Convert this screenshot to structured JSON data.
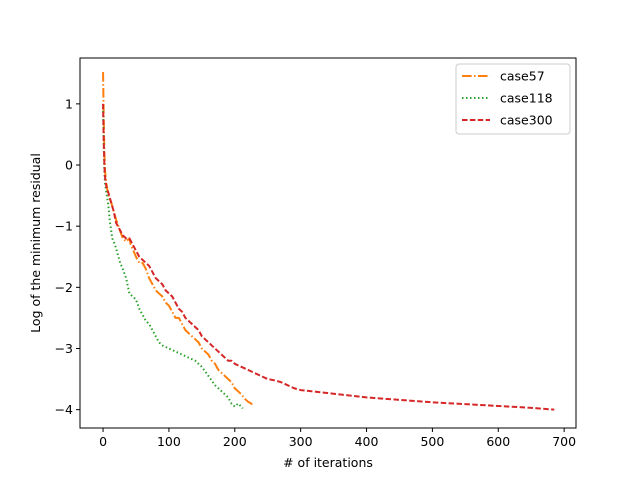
{
  "chart_data": {
    "type": "line",
    "title": "",
    "xlabel": "# of iterations",
    "ylabel": "Log of the minimum residual",
    "xlim": [
      -35,
      718
    ],
    "ylim": [
      -4.3,
      1.75
    ],
    "xticks": [
      0,
      100,
      200,
      300,
      400,
      500,
      600,
      700
    ],
    "yticks": [
      -4,
      -3,
      -2,
      -1,
      0,
      1
    ],
    "ytick_labels": [
      "−4",
      "−3",
      "−2",
      "−1",
      "0",
      "1"
    ],
    "grid": false,
    "legend_position": "top-right",
    "series": [
      {
        "name": "case57",
        "color": "#ff7f0e",
        "dash": "dashdot",
        "points": [
          [
            0,
            1.52
          ],
          [
            1,
            0.8
          ],
          [
            2,
            0.2
          ],
          [
            3,
            -0.1
          ],
          [
            5,
            -0.3
          ],
          [
            8,
            -0.5
          ],
          [
            12,
            -0.6
          ],
          [
            16,
            -0.75
          ],
          [
            20,
            -0.9
          ],
          [
            25,
            -1.05
          ],
          [
            30,
            -1.2
          ],
          [
            35,
            -1.25
          ],
          [
            40,
            -1.2
          ],
          [
            42,
            -1.3
          ],
          [
            46,
            -1.4
          ],
          [
            50,
            -1.5
          ],
          [
            55,
            -1.6
          ],
          [
            60,
            -1.6
          ],
          [
            65,
            -1.7
          ],
          [
            70,
            -1.85
          ],
          [
            75,
            -1.95
          ],
          [
            80,
            -2.05
          ],
          [
            85,
            -2.1
          ],
          [
            90,
            -2.15
          ],
          [
            95,
            -2.25
          ],
          [
            100,
            -2.3
          ],
          [
            105,
            -2.4
          ],
          [
            110,
            -2.5
          ],
          [
            115,
            -2.5
          ],
          [
            120,
            -2.6
          ],
          [
            125,
            -2.7
          ],
          [
            130,
            -2.75
          ],
          [
            135,
            -2.8
          ],
          [
            140,
            -2.85
          ],
          [
            145,
            -2.9
          ],
          [
            150,
            -3.0
          ],
          [
            155,
            -3.05
          ],
          [
            160,
            -3.1
          ],
          [
            165,
            -3.2
          ],
          [
            170,
            -3.25
          ],
          [
            175,
            -3.35
          ],
          [
            180,
            -3.4
          ],
          [
            185,
            -3.45
          ],
          [
            190,
            -3.5
          ],
          [
            195,
            -3.55
          ],
          [
            200,
            -3.65
          ],
          [
            205,
            -3.7
          ],
          [
            210,
            -3.75
          ],
          [
            215,
            -3.82
          ],
          [
            220,
            -3.87
          ],
          [
            225,
            -3.9
          ],
          [
            228,
            -3.95
          ]
        ]
      },
      {
        "name": "case118",
        "color": "#2ca02c",
        "dash": "dotted",
        "points": [
          [
            0,
            0.95
          ],
          [
            1,
            0.4
          ],
          [
            2,
            -0.1
          ],
          [
            3,
            -0.3
          ],
          [
            5,
            -0.45
          ],
          [
            8,
            -0.65
          ],
          [
            10,
            -0.9
          ],
          [
            14,
            -1.2
          ],
          [
            18,
            -1.3
          ],
          [
            22,
            -1.45
          ],
          [
            26,
            -1.6
          ],
          [
            30,
            -1.7
          ],
          [
            35,
            -1.85
          ],
          [
            40,
            -2.1
          ],
          [
            45,
            -2.15
          ],
          [
            50,
            -2.2
          ],
          [
            55,
            -2.35
          ],
          [
            60,
            -2.45
          ],
          [
            65,
            -2.55
          ],
          [
            70,
            -2.6
          ],
          [
            75,
            -2.7
          ],
          [
            80,
            -2.8
          ],
          [
            85,
            -2.9
          ],
          [
            90,
            -2.95
          ],
          [
            100,
            -3.0
          ],
          [
            110,
            -3.05
          ],
          [
            120,
            -3.1
          ],
          [
            130,
            -3.15
          ],
          [
            140,
            -3.2
          ],
          [
            150,
            -3.3
          ],
          [
            160,
            -3.45
          ],
          [
            170,
            -3.6
          ],
          [
            180,
            -3.7
          ],
          [
            190,
            -3.8
          ],
          [
            195,
            -3.9
          ],
          [
            200,
            -3.95
          ],
          [
            205,
            -3.9
          ],
          [
            210,
            -3.95
          ],
          [
            212,
            -3.98
          ]
        ]
      },
      {
        "name": "case300",
        "color": "#d62728",
        "dash": "dashed",
        "points": [
          [
            0,
            1.0
          ],
          [
            1,
            0.4
          ],
          [
            2,
            0.0
          ],
          [
            3,
            -0.2
          ],
          [
            5,
            -0.35
          ],
          [
            8,
            -0.45
          ],
          [
            12,
            -0.6
          ],
          [
            16,
            -0.75
          ],
          [
            20,
            -0.95
          ],
          [
            25,
            -1.05
          ],
          [
            30,
            -1.15
          ],
          [
            35,
            -1.2
          ],
          [
            40,
            -1.2
          ],
          [
            45,
            -1.3
          ],
          [
            50,
            -1.4
          ],
          [
            55,
            -1.5
          ],
          [
            60,
            -1.55
          ],
          [
            65,
            -1.6
          ],
          [
            70,
            -1.65
          ],
          [
            75,
            -1.75
          ],
          [
            80,
            -1.85
          ],
          [
            85,
            -1.9
          ],
          [
            90,
            -1.95
          ],
          [
            95,
            -2.05
          ],
          [
            100,
            -2.1
          ],
          [
            105,
            -2.15
          ],
          [
            110,
            -2.25
          ],
          [
            115,
            -2.35
          ],
          [
            120,
            -2.4
          ],
          [
            125,
            -2.5
          ],
          [
            130,
            -2.55
          ],
          [
            135,
            -2.6
          ],
          [
            140,
            -2.65
          ],
          [
            145,
            -2.7
          ],
          [
            150,
            -2.8
          ],
          [
            155,
            -2.85
          ],
          [
            160,
            -2.9
          ],
          [
            165,
            -2.95
          ],
          [
            170,
            -3.0
          ],
          [
            175,
            -3.05
          ],
          [
            180,
            -3.1
          ],
          [
            185,
            -3.15
          ],
          [
            190,
            -3.2
          ],
          [
            195,
            -3.2
          ],
          [
            200,
            -3.25
          ],
          [
            210,
            -3.3
          ],
          [
            220,
            -3.35
          ],
          [
            230,
            -3.4
          ],
          [
            240,
            -3.45
          ],
          [
            250,
            -3.5
          ],
          [
            260,
            -3.52
          ],
          [
            270,
            -3.55
          ],
          [
            280,
            -3.6
          ],
          [
            290,
            -3.65
          ],
          [
            300,
            -3.68
          ],
          [
            350,
            -3.74
          ],
          [
            400,
            -3.8
          ],
          [
            450,
            -3.84
          ],
          [
            500,
            -3.88
          ],
          [
            550,
            -3.91
          ],
          [
            600,
            -3.94
          ],
          [
            650,
            -3.97
          ],
          [
            685,
            -4.0
          ]
        ]
      }
    ]
  }
}
